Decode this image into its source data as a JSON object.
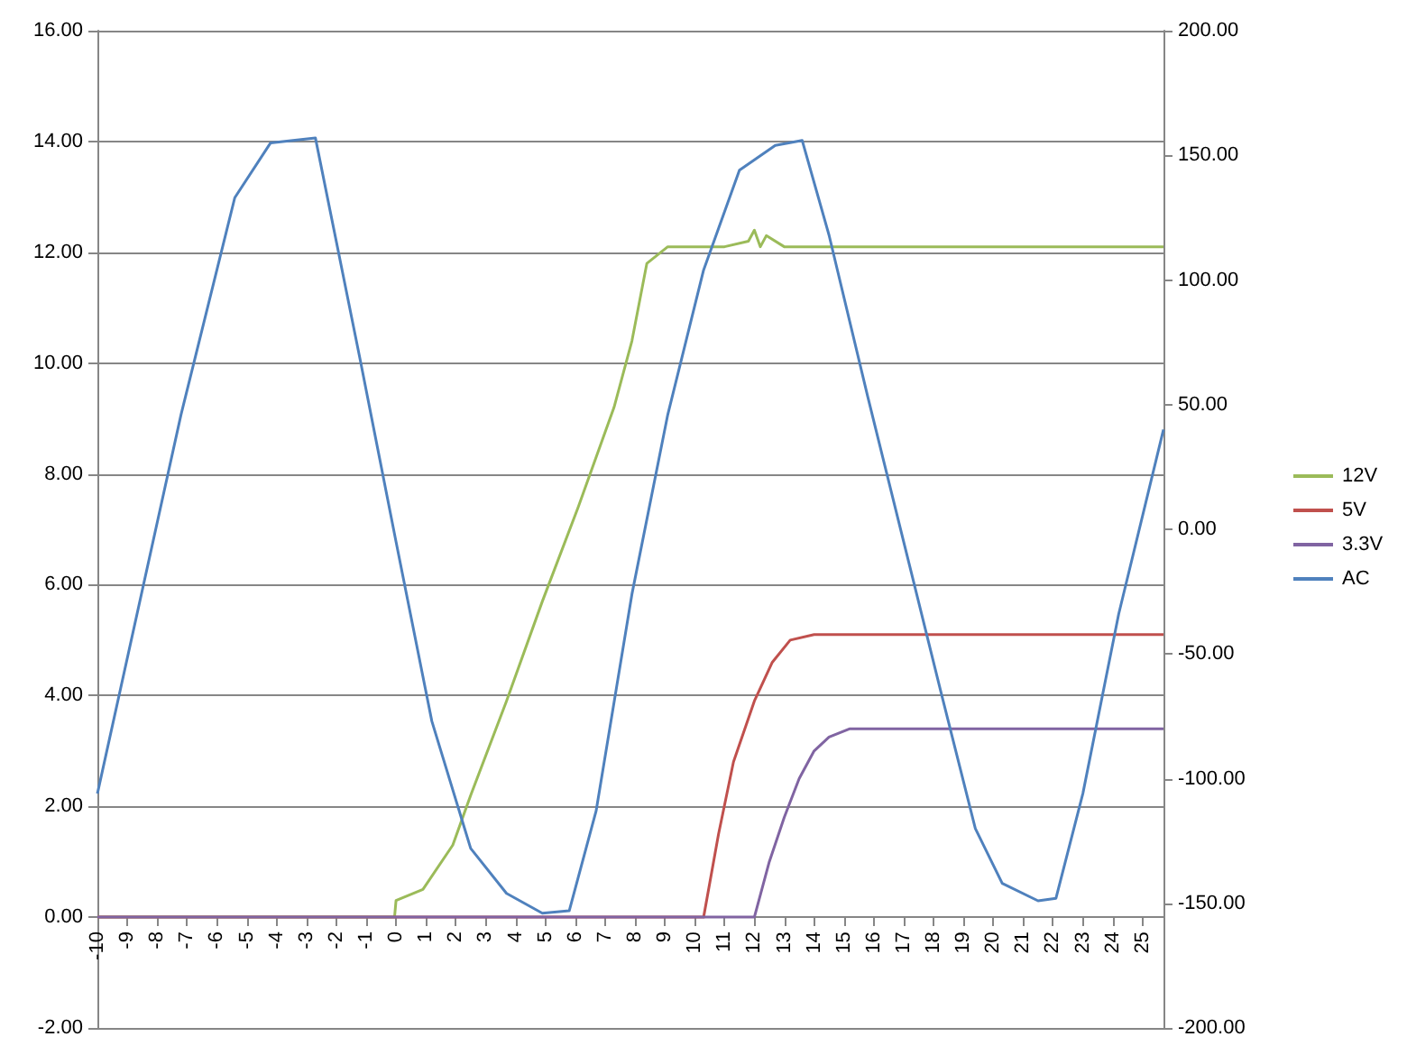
{
  "chart_data": {
    "type": "line",
    "xlim": [
      -10,
      25.7
    ],
    "xticks": [
      -10,
      -9,
      -8,
      -7,
      -6,
      -5,
      -4,
      -3,
      -2,
      -1,
      0,
      1,
      2,
      3,
      4,
      5,
      6,
      7,
      8,
      9,
      10,
      11,
      12,
      13,
      14,
      15,
      16,
      17,
      18,
      19,
      20,
      21,
      22,
      23,
      24,
      25
    ],
    "ylim": [
      -2,
      16
    ],
    "yticks": [
      {
        "value": -2,
        "label": "-2.00"
      },
      {
        "value": 0,
        "label": "0.00"
      },
      {
        "value": 2,
        "label": "2.00"
      },
      {
        "value": 4,
        "label": "4.00"
      },
      {
        "value": 6,
        "label": "6.00"
      },
      {
        "value": 8,
        "label": "8.00"
      },
      {
        "value": 10,
        "label": "10.00"
      },
      {
        "value": 12,
        "label": "12.00"
      },
      {
        "value": 14,
        "label": "14.00"
      },
      {
        "value": 16,
        "label": "16.00"
      }
    ],
    "y2lim": [
      -200,
      200
    ],
    "y2ticks": [
      {
        "value": -200,
        "label": "-200.00"
      },
      {
        "value": -150,
        "label": "-150.00"
      },
      {
        "value": -100,
        "label": "-100.00"
      },
      {
        "value": -50,
        "label": "-50.00"
      },
      {
        "value": 0,
        "label": "0.00"
      },
      {
        "value": 50,
        "label": "50.00"
      },
      {
        "value": 100,
        "label": "100.00"
      },
      {
        "value": 150,
        "label": "150.00"
      },
      {
        "value": 200,
        "label": "200.00"
      }
    ],
    "grid": "y",
    "legend": "right",
    "marker": "none",
    "line_style": "solid",
    "series": [
      {
        "name": "12V",
        "color": "#9bbb59",
        "x": [
          -10,
          -0.05,
          0,
          0.9,
          1.9,
          2.5,
          3.7,
          4.9,
          6.1,
          7.3,
          7.9,
          8.4,
          9.1,
          11,
          11.8,
          12,
          12.2,
          12.4,
          13,
          15,
          20,
          25.7
        ],
        "values": [
          0,
          0,
          0.3,
          0.5,
          1.3,
          2.2,
          3.9,
          5.7,
          7.4,
          9.2,
          10.4,
          11.8,
          12.1,
          12.1,
          12.2,
          12.4,
          12.1,
          12.3,
          12.1,
          12.1,
          12.1,
          12.1
        ]
      },
      {
        "name": "5V",
        "color": "#c0504d",
        "x": [
          -10,
          10.3,
          10.8,
          11.3,
          12,
          12.6,
          13.2,
          14,
          20,
          25.7
        ],
        "values": [
          0,
          0,
          1.5,
          2.8,
          3.9,
          4.6,
          5.0,
          5.1,
          5.1,
          5.1
        ]
      },
      {
        "name": "3.3V",
        "color": "#8064a2",
        "x": [
          -10,
          12,
          12.5,
          13,
          13.5,
          14,
          14.5,
          15.2,
          20,
          25.7
        ],
        "values": [
          0,
          0,
          1.0,
          1.8,
          2.5,
          3.0,
          3.25,
          3.4,
          3.4,
          3.4
        ]
      },
      {
        "name": "AC",
        "color": "#4f81bd",
        "axis": "y2",
        "x": [
          -10,
          -7.2,
          -5.4,
          -4.2,
          -2.7,
          -1.2,
          0,
          1.2,
          2.5,
          3.7,
          4.9,
          5.8,
          6.7,
          7.9,
          9.1,
          10.3,
          11.5,
          12.7,
          13.6,
          14.5,
          15.8,
          17,
          18.2,
          19.4,
          20.3,
          21.5,
          22.1,
          23,
          24.2,
          25.7
        ],
        "values": [
          -106,
          46,
          133,
          155,
          157,
          68,
          -5,
          -77,
          -128,
          -146,
          -154,
          -153,
          -113,
          -26,
          46,
          104,
          144,
          154,
          156,
          118,
          53,
          -5,
          -63,
          -120,
          -142,
          -149,
          -148,
          -106,
          -34,
          40
        ]
      }
    ]
  }
}
